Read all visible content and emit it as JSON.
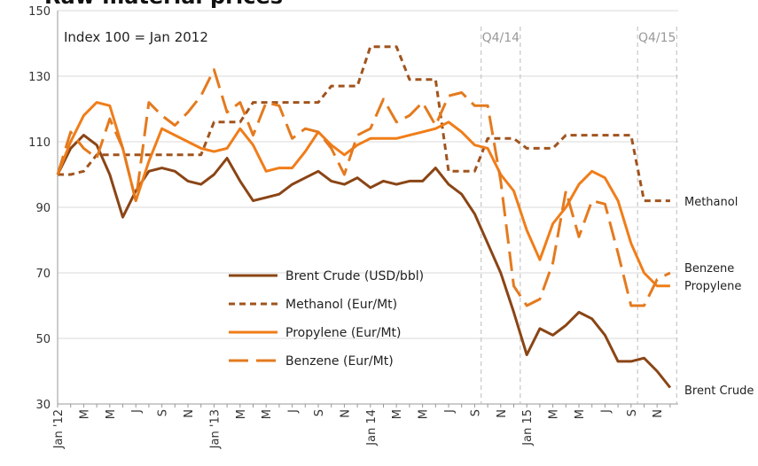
{
  "chart_data": {
    "type": "line",
    "title": "Raw material prices",
    "annotations": [
      "Index 100 = Jan 2012",
      "Q4/14",
      "Q4/15"
    ],
    "end_labels": [
      "Methanol",
      "Benzene",
      "Propylene",
      "Brent Crude"
    ],
    "categories": [
      "Jan '12",
      null,
      "M",
      null,
      "M",
      null,
      "J",
      null,
      "S",
      null,
      "N",
      null,
      "Jan '13",
      null,
      "M",
      null,
      "M",
      null,
      "J",
      null,
      "S",
      null,
      "N",
      null,
      "Jan 14",
      null,
      "M",
      null,
      "M",
      null,
      "J",
      null,
      "S",
      null,
      "N",
      null,
      "Jan 15",
      null,
      "M",
      null,
      "M",
      null,
      "J",
      null,
      "S",
      null,
      "N",
      null
    ],
    "series": [
      {
        "name": "Brent Crude (USD/bbl)",
        "color": "#8a4515",
        "dash": "solid",
        "values": [
          100,
          108,
          112,
          109,
          100,
          87,
          95,
          101,
          102,
          101,
          98,
          97,
          100,
          105,
          98,
          92,
          93,
          94,
          97,
          99,
          101,
          98,
          97,
          99,
          96,
          98,
          97,
          98,
          98,
          102,
          97,
          94,
          88,
          79,
          70,
          58,
          45,
          53,
          51,
          54,
          58,
          56,
          51,
          43,
          43,
          44,
          40,
          35
        ]
      },
      {
        "name": "Methanol (Eur/Mt)",
        "color": "#a0541e",
        "dash": "short",
        "values": [
          100,
          100,
          101,
          106,
          106,
          106,
          106,
          106,
          106,
          106,
          106,
          106,
          116,
          116,
          116,
          122,
          122,
          122,
          122,
          122,
          122,
          127,
          127,
          127,
          139,
          139,
          139,
          129,
          129,
          129,
          101,
          101,
          101,
          111,
          111,
          111,
          108,
          108,
          108,
          112,
          112,
          112,
          112,
          112,
          112,
          92,
          92,
          92
        ]
      },
      {
        "name": "Propylene (Eur/Mt)",
        "color": "#f07d19",
        "dash": "solid",
        "values": [
          100,
          110,
          118,
          122,
          121,
          108,
          92,
          104,
          114,
          112,
          110,
          108,
          107,
          108,
          114,
          109,
          101,
          102,
          102,
          107,
          113,
          109,
          106,
          109,
          111,
          111,
          111,
          112,
          113,
          114,
          116,
          113,
          109,
          108,
          100,
          95,
          83,
          74,
          85,
          90,
          97,
          101,
          99,
          92,
          79,
          70,
          66,
          66
        ]
      },
      {
        "name": "Benzene (Eur/Mt)",
        "color": "#e47a1e",
        "dash": "long",
        "values": [
          100,
          113,
          108,
          105,
          117,
          108,
          92,
          122,
          118,
          115,
          119,
          124,
          132,
          119,
          122,
          112,
          122,
          121,
          111,
          114,
          113,
          108,
          100,
          112,
          114,
          123,
          116,
          118,
          122,
          115,
          124,
          125,
          121,
          121,
          98,
          66,
          60,
          62,
          73,
          95,
          81,
          92,
          91,
          76,
          60,
          60,
          68,
          70
        ]
      }
    ],
    "ylim": [
      30,
      150
    ],
    "yticks": [
      30,
      50,
      70,
      90,
      110,
      130,
      150
    ],
    "grid": true,
    "legend": "center"
  }
}
